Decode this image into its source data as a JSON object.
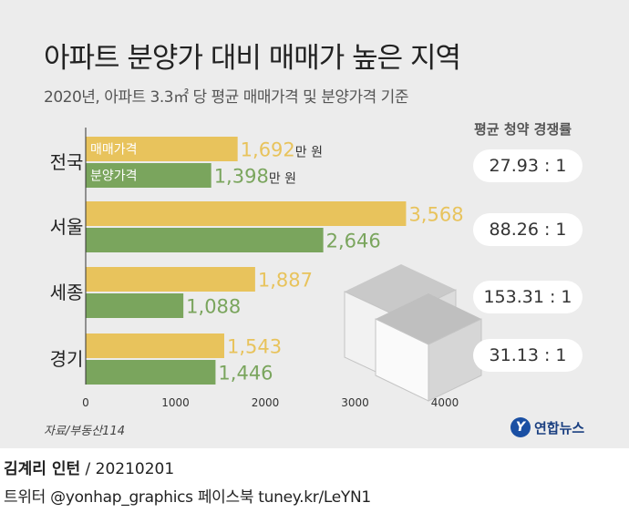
{
  "header": {
    "title": "아파트 분양가 대비 매매가 높은 지역",
    "subtitle": "2020년, 아파트 3.3㎡ 당 평균 매매가격 및 분양가격 기준"
  },
  "rates": {
    "header": "평균 청약 경쟁률",
    "items": [
      "27.93 : 1",
      "88.26 : 1",
      "153.31 : 1",
      "31.13 : 1"
    ]
  },
  "chart_data": {
    "type": "bar",
    "orientation": "horizontal",
    "categories": [
      "전국",
      "서울",
      "세종",
      "경기"
    ],
    "series": [
      {
        "name": "매매가격",
        "values": [
          1692,
          3568,
          1887,
          1543
        ],
        "color": "#e8c35c"
      },
      {
        "name": "분양가격",
        "values": [
          1398,
          2646,
          1088,
          1446
        ],
        "color": "#7aa55d"
      }
    ],
    "value_labels": {
      "매매가격": [
        "1,692",
        "3,568",
        "1,887",
        "1,543"
      ],
      "분양가격": [
        "1,398",
        "2,646",
        "1,088",
        "1,446"
      ]
    },
    "first_row_unit": "만 원",
    "xlim": [
      0,
      4000
    ],
    "xticks": [
      0,
      1000,
      2000,
      3000,
      4000
    ],
    "grid": false,
    "legend": "inside-first-bars"
  },
  "source": "자료/부동산114",
  "logo": {
    "mark": "Y",
    "text": "연합뉴스"
  },
  "credits": {
    "author": "김계리 인턴",
    "date": " / 20210201",
    "social": "트위터 @yonhap_graphics  페이스북 tuney.kr/LeYN1"
  }
}
